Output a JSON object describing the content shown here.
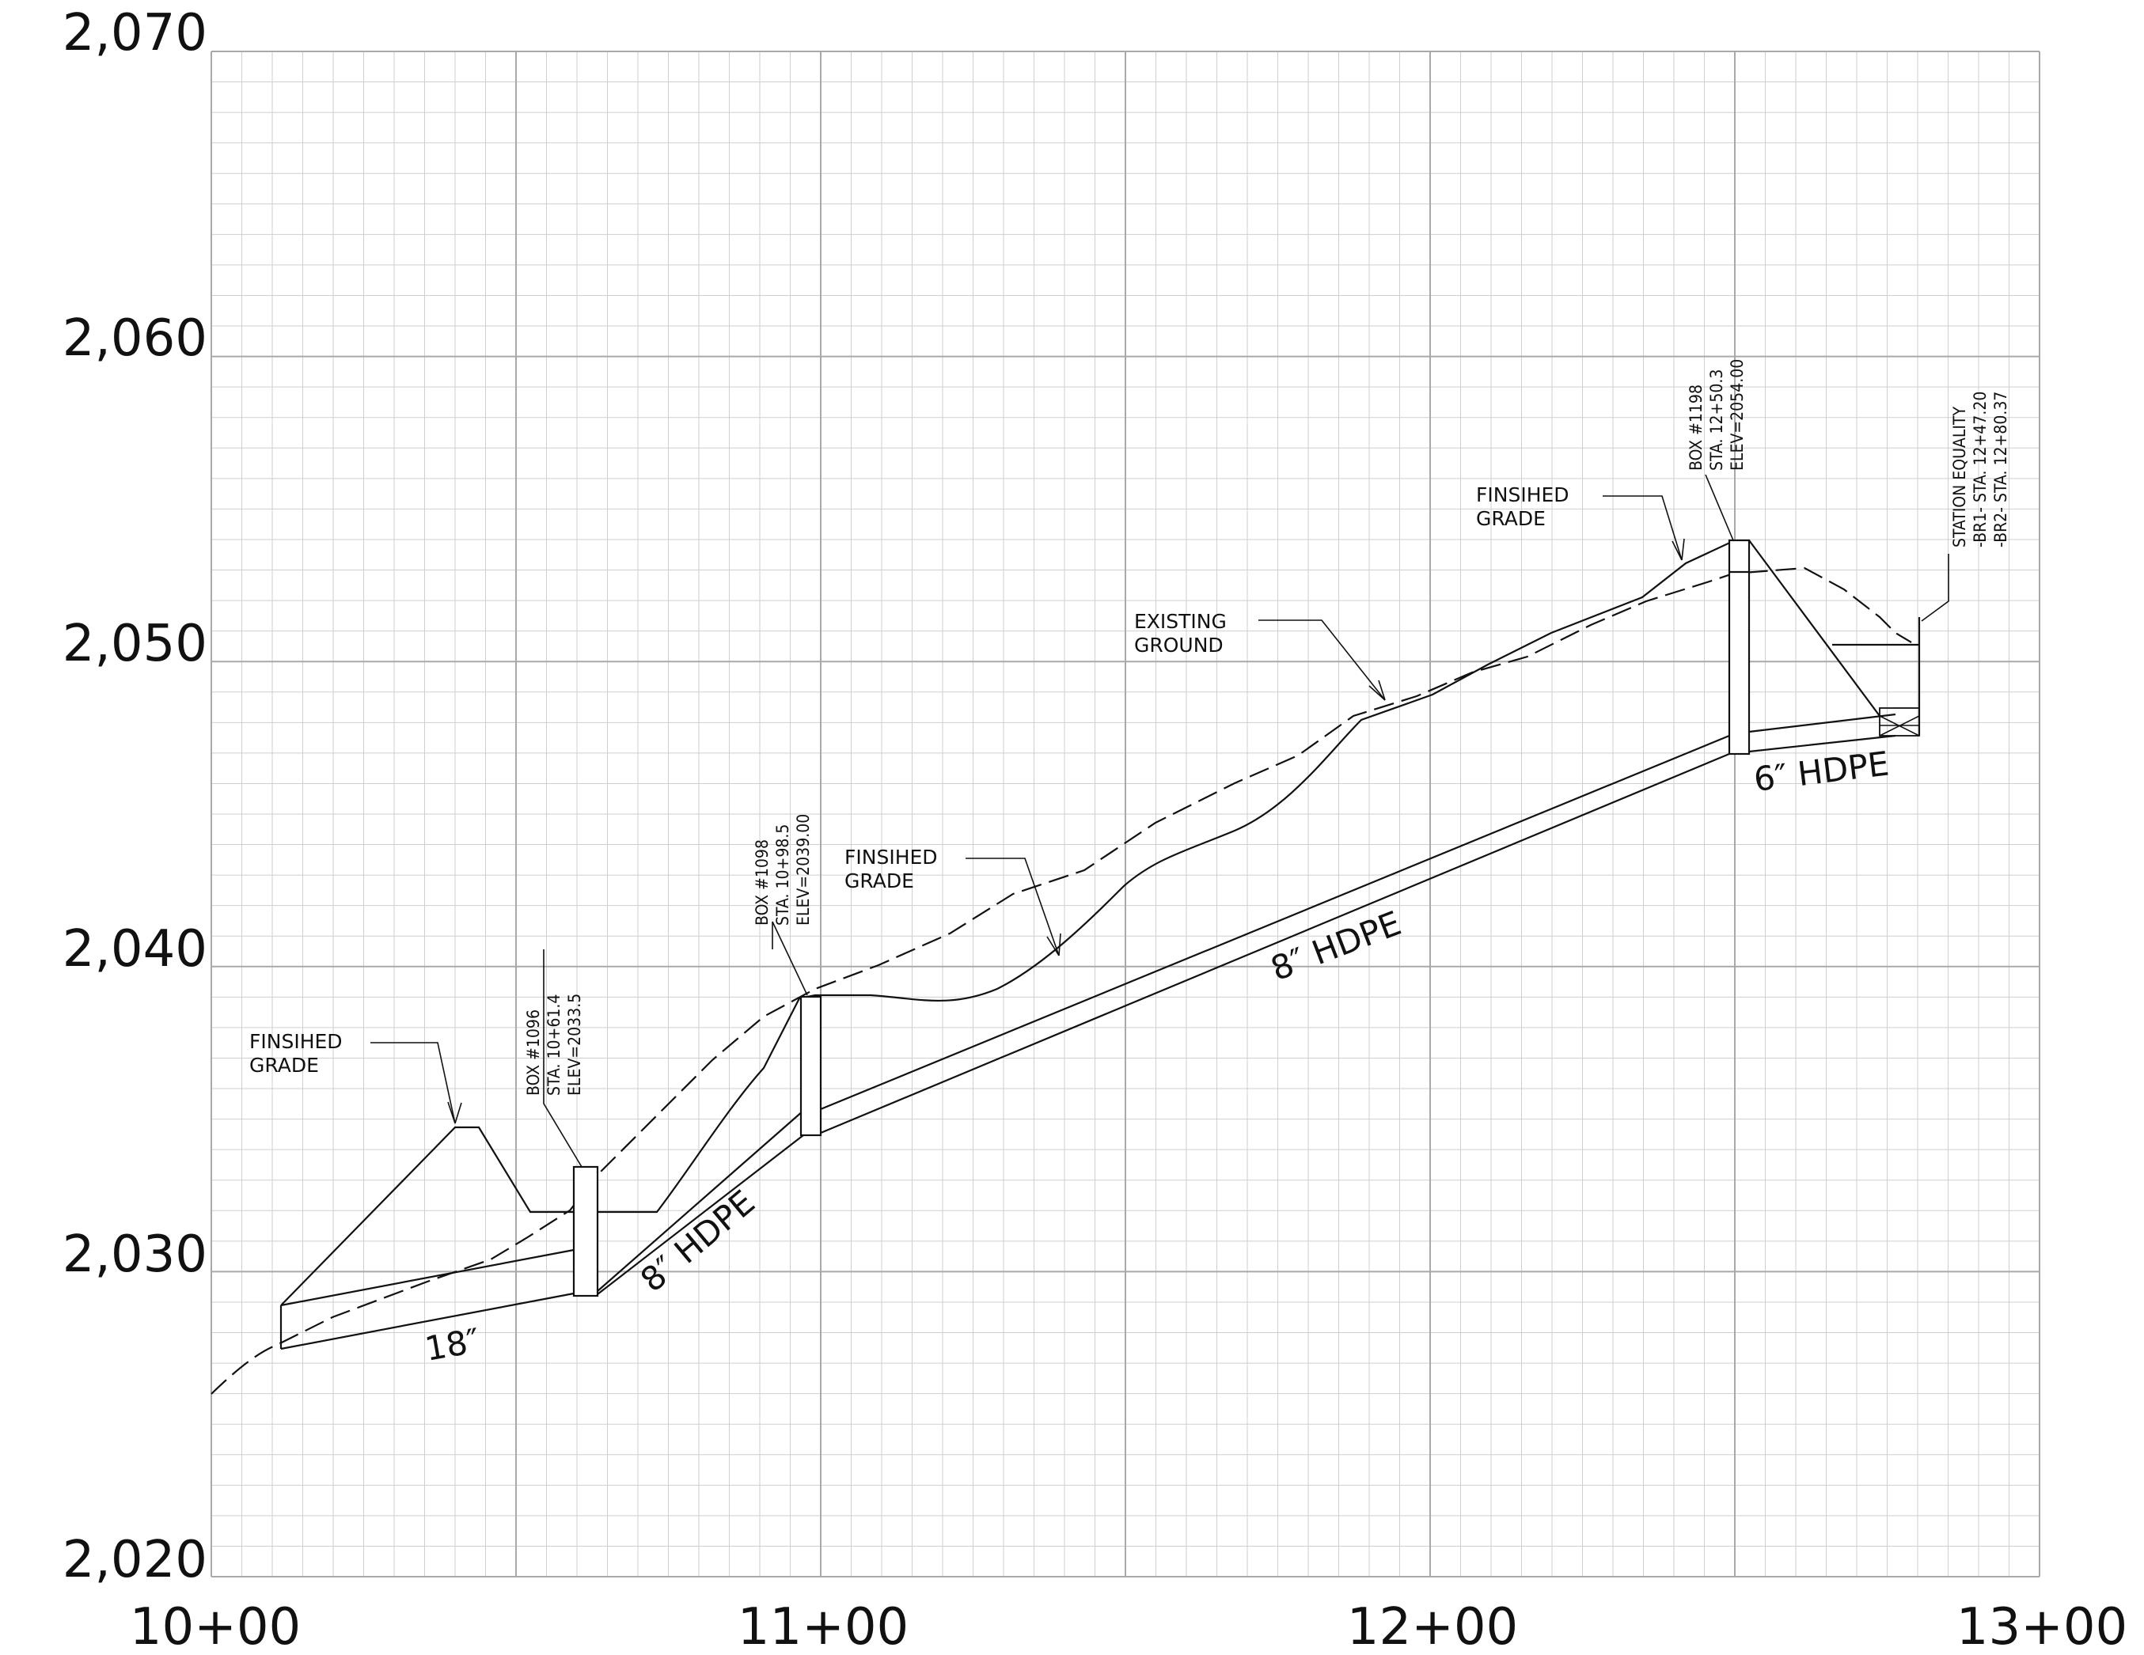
{
  "y_ticks": [
    "2,070",
    "2,060",
    "2,050",
    "2,040",
    "2,030",
    "2,020"
  ],
  "x_ticks": [
    "10+00",
    "11+00",
    "12+00",
    "13+00"
  ],
  "annotations": {
    "finished_grade_1": [
      "FINSIHED",
      "GRADE"
    ],
    "finished_grade_2": [
      "FINSIHED",
      "GRADE"
    ],
    "finished_grade_3": [
      "FINSIHED",
      "GRADE"
    ],
    "existing_ground": [
      "EXISTING",
      "GROUND"
    ],
    "box_1096": [
      "BOX #1096",
      "STA. 10+61.4",
      "ELEV=2033.5"
    ],
    "box_1098": [
      "BOX #1098",
      "STA. 10+98.5",
      "ELEV=2039.00"
    ],
    "box_1198": [
      "BOX #1198",
      "STA. 12+50.3",
      "ELEV=2054.00"
    ],
    "station_equality": [
      "STATION EQUALITY",
      "-BR1- STA. 12+47.20",
      "-BR2- STA. 12+80.37"
    ]
  },
  "pipe_labels": {
    "p18": "18″",
    "hdpe8_a": "8″ HDPE",
    "hdpe8_b": "8″ HDPE",
    "hdpe6": "6″ HDPE"
  },
  "colors": {
    "line": "#111111",
    "grid_major": "#a9a9a9",
    "grid_minor": "#cfcfcf"
  }
}
